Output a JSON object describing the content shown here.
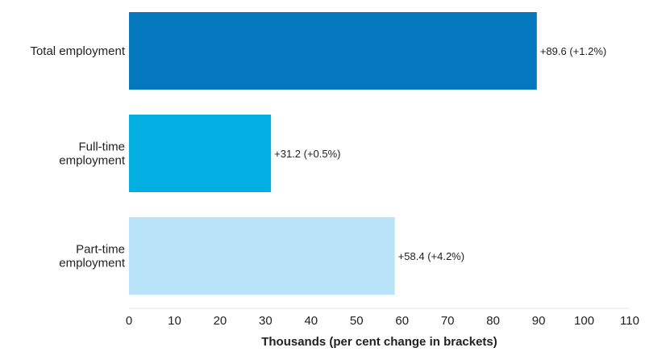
{
  "chart_data": {
    "type": "bar",
    "orientation": "horizontal",
    "categories": [
      [
        "Total employment"
      ],
      [
        "Full-time",
        "employment"
      ],
      [
        "Part-time",
        "employment"
      ]
    ],
    "values": [
      89.6,
      31.2,
      58.4
    ],
    "data_labels": [
      "+89.6 (+1.2%)",
      "+31.2 (+0.5%)",
      "+58.4 (+4.2%)"
    ],
    "colors": [
      "#0577BE",
      "#03AFE2",
      "#B8E3F8"
    ],
    "xlabel": "Thousands (per cent change in brackets)",
    "xlim": [
      0,
      110
    ],
    "xticks": [
      0,
      10,
      20,
      30,
      40,
      50,
      60,
      70,
      80,
      90,
      100,
      110
    ],
    "grid": false
  }
}
